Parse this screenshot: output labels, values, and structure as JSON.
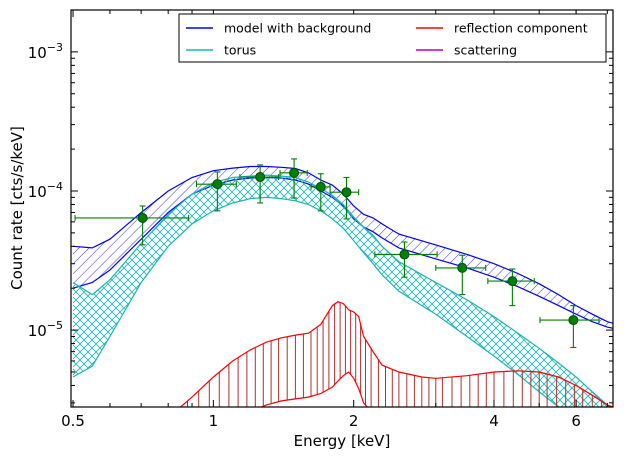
{
  "chart_data": {
    "type": "line",
    "xlabel": "Energy [keV]",
    "ylabel": "Count rate [cts/s/keV]",
    "xscale": "log",
    "yscale": "log",
    "xlim": [
      0.495,
      7.2
    ],
    "ylim": [
      2.8e-06,
      0.002
    ],
    "x_ticks": [
      {
        "value": 0.5,
        "label": "0.5"
      },
      {
        "value": 1,
        "label": "1"
      },
      {
        "value": 2,
        "label": "2"
      },
      {
        "value": 4,
        "label": "4"
      },
      {
        "value": 6,
        "label": "6"
      }
    ],
    "y_ticks": [
      {
        "value": 1e-05,
        "base": "10",
        "exp": "−5"
      },
      {
        "value": 0.0001,
        "base": "10",
        "exp": "−4"
      },
      {
        "value": 0.001,
        "base": "10",
        "exp": "−3"
      }
    ],
    "legend": {
      "placement": "top-right",
      "entries": [
        {
          "label": "model with background",
          "color": "#0000ff"
        },
        {
          "label": "reflection component",
          "color": "#ff0000"
        },
        {
          "label": "torus",
          "color": "#1ab5b5"
        },
        {
          "label": "scattering",
          "color": "#bf00bf"
        }
      ]
    },
    "series": [
      {
        "name": "model with background",
        "color": "#0000ff",
        "x": [
          0.5,
          0.55,
          0.6,
          0.7,
          0.8,
          0.9,
          1.0,
          1.1,
          1.2,
          1.3,
          1.4,
          1.5,
          1.6,
          1.7,
          1.8,
          1.9,
          2.0,
          2.1,
          2.2,
          2.3,
          2.5,
          3.0,
          3.5,
          4.0,
          4.5,
          5.0,
          5.5,
          6.0,
          6.5,
          7.0,
          7.2
        ],
        "upper": [
          4e-05,
          3.9e-05,
          4.5e-05,
          7e-05,
          0.0001,
          0.000125,
          0.00014,
          0.000146,
          0.00015,
          0.00015,
          0.000148,
          0.000145,
          0.000135,
          0.00012,
          0.00011,
          9.5e-05,
          7.8e-05,
          6.8e-05,
          6.4e-05,
          5.8e-05,
          4.9e-05,
          4.1e-05,
          3.5e-05,
          3e-05,
          2.55e-05,
          2.15e-05,
          1.8e-05,
          1.5e-05,
          1.3e-05,
          1.15e-05,
          1.12e-05
        ],
        "lower": [
          2e-05,
          2.2e-05,
          2.7e-05,
          4.5e-05,
          7e-05,
          9.5e-05,
          0.00011,
          0.00012,
          0.000124,
          0.000125,
          0.000124,
          0.00012,
          0.000112,
          0.0001,
          9e-05,
          7.8e-05,
          6.3e-05,
          5.5e-05,
          5.1e-05,
          4.6e-05,
          3.9e-05,
          3.25e-05,
          2.8e-05,
          2.4e-05,
          2.05e-05,
          1.75e-05,
          1.5e-05,
          1.3e-05,
          1.15e-05,
          1.05e-05,
          1.03e-05
        ]
      },
      {
        "name": "torus",
        "color": "#1ab5b5",
        "x": [
          0.5,
          0.55,
          0.6,
          0.7,
          0.8,
          0.9,
          1.0,
          1.1,
          1.2,
          1.3,
          1.4,
          1.5,
          1.6,
          1.7,
          1.8,
          1.9,
          2.0,
          2.1,
          2.2,
          2.3,
          2.5,
          3.0,
          3.5,
          4.0,
          4.5,
          5.0,
          5.5,
          6.0,
          6.5,
          7.0,
          7.2
        ],
        "upper": [
          2.2e-05,
          1.8e-05,
          2.3e-05,
          4.2e-05,
          6.8e-05,
          9.5e-05,
          0.000115,
          0.000125,
          0.000128,
          0.00013,
          0.000128,
          0.000125,
          0.000116,
          0.000104,
          9.3e-05,
          8e-05,
          6.5e-05,
          5.5e-05,
          4.8e-05,
          4e-05,
          3.1e-05,
          2.2e-05,
          1.65e-05,
          1.25e-05,
          9.5e-06,
          7.4e-06,
          5.8e-06,
          4.6e-06,
          3.6e-06,
          2.9e-06,
          2.7e-06
        ],
        "lower": [
          4.6e-06,
          5.5e-06,
          9e-06,
          2.2e-05,
          4e-05,
          5.8e-05,
          7.2e-05,
          8.2e-05,
          8.8e-05,
          9e-05,
          8.8e-05,
          8.5e-05,
          8e-05,
          7.2e-05,
          6.3e-05,
          5.4e-05,
          4.4e-05,
          3.6e-05,
          3e-05,
          2.5e-05,
          1.9e-05,
          1.3e-05,
          9e-06,
          6.5e-06,
          4.8e-06,
          3.6e-06,
          2.8e-06,
          2.2e-06,
          1.8e-06,
          1.5e-06,
          1.4e-06
        ]
      },
      {
        "name": "reflection component",
        "color": "#ff0000",
        "x": [
          0.85,
          0.9,
          1.0,
          1.1,
          1.2,
          1.3,
          1.4,
          1.5,
          1.6,
          1.7,
          1.8,
          1.85,
          1.9,
          1.95,
          2.0,
          2.05,
          2.1,
          2.2,
          2.3,
          2.5,
          2.8,
          3.0,
          3.5,
          4.0,
          4.5,
          5.0,
          5.5,
          6.0,
          6.5,
          7.0,
          7.2
        ],
        "upper": [
          2.8e-06,
          3.3e-06,
          4.6e-06,
          6e-06,
          7.2e-06,
          8.2e-06,
          8.8e-06,
          9.2e-06,
          9.5e-06,
          1.1e-05,
          1.5e-05,
          1.6e-05,
          1.55e-05,
          1.4e-05,
          1.35e-05,
          1.25e-05,
          9e-06,
          7e-06,
          5.6e-06,
          5e-06,
          4.6e-06,
          4.5e-06,
          4.7e-06,
          5e-06,
          5.1e-06,
          5e-06,
          4.6e-06,
          4e-06,
          3.4e-06,
          2.9e-06,
          2.8e-06
        ],
        "lower": [
          1e-06,
          1.2e-06,
          1.7e-06,
          2.2e-06,
          2.6e-06,
          2.9e-06,
          3.1e-06,
          3.2e-06,
          3.3e-06,
          3.5e-06,
          3.9e-06,
          4.3e-06,
          4.7e-06,
          5e-06,
          4.5e-06,
          3.8e-06,
          3e-06,
          2.5e-06,
          2.2e-06,
          2e-06,
          1.9e-06,
          1.9e-06,
          2e-06,
          2.1e-06,
          2.1e-06,
          2e-06,
          1.9e-06,
          1.7e-06,
          1.5e-06,
          1.3e-06,
          1.2e-06
        ],
        "hatch_lines_x": [
          0.88,
          0.93,
          0.98,
          1.03,
          1.08,
          1.13,
          1.18,
          1.23,
          1.28,
          1.33,
          1.38,
          1.44,
          1.5,
          1.56,
          1.62,
          1.67,
          1.72,
          1.77,
          1.82,
          1.87,
          1.92,
          1.97,
          2.02,
          2.07,
          2.12,
          2.18,
          2.26,
          2.34,
          2.42,
          2.5,
          2.6,
          2.7,
          2.8,
          2.9,
          3.0,
          3.1,
          3.25,
          3.4,
          3.55,
          3.7,
          3.85,
          4.0,
          4.2,
          4.4,
          4.6,
          4.8,
          5.0,
          5.2,
          5.45,
          5.7,
          5.95,
          6.2,
          6.5,
          6.8,
          7.1
        ],
        "hatch_color": "#b03030"
      }
    ],
    "data_points": {
      "name": "observed data",
      "color": "#008000",
      "points": [
        {
          "x": 0.705,
          "y": 6.4e-05,
          "xerr": [
            0.2,
            0.18
          ],
          "yerr": [
            2.3e-05,
            1.4e-05
          ]
        },
        {
          "x": 1.02,
          "y": 0.000112,
          "xerr": [
            0.1,
            0.1
          ],
          "yerr": [
            4e-05,
            2.5e-05
          ]
        },
        {
          "x": 1.26,
          "y": 0.000126,
          "xerr": [
            0.12,
            0.12
          ],
          "yerr": [
            4.4e-05,
            2.8e-05
          ]
        },
        {
          "x": 1.49,
          "y": 0.000135,
          "xerr": [
            0.1,
            0.1
          ],
          "yerr": [
            4.6e-05,
            3.5e-05
          ]
        },
        {
          "x": 1.7,
          "y": 0.000107,
          "xerr": [
            0.08,
            0.08
          ],
          "yerr": [
            3.5e-05,
            2.6e-05
          ]
        },
        {
          "x": 1.93,
          "y": 9.8e-05,
          "xerr": [
            0.15,
            0.12
          ],
          "yerr": [
            3.5e-05,
            2.7e-05
          ]
        },
        {
          "x": 2.57,
          "y": 3.5e-05,
          "xerr": [
            0.35,
            0.45
          ],
          "yerr": [
            1.1e-05,
            8e-06
          ]
        },
        {
          "x": 3.42,
          "y": 2.8e-05,
          "xerr": [
            0.42,
            0.42
          ],
          "yerr": [
            1e-05,
            6.5e-06
          ]
        },
        {
          "x": 4.38,
          "y": 2.25e-05,
          "xerr": [
            0.5,
            0.5
          ],
          "yerr": [
            7.5e-06,
            5e-06
          ]
        },
        {
          "x": 5.92,
          "y": 1.18e-05,
          "xerr": [
            0.9,
            0.8
          ],
          "yerr": [
            4.3e-06,
            3.2e-06
          ]
        }
      ]
    }
  }
}
